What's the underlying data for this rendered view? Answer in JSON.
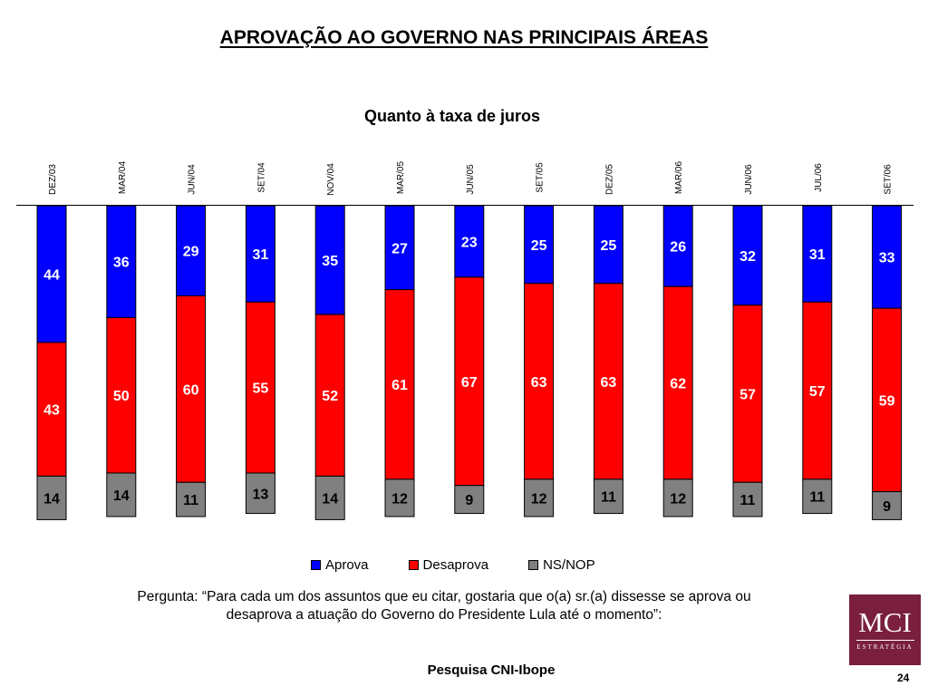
{
  "page": {
    "title": "APROVAÇÃO AO GOVERNO NAS PRINCIPAIS ÁREAS",
    "question": "Pergunta: “Para cada um dos assuntos que eu citar, gostaria que o(a) sr.(a) dissesse se aprova ou desaprova a atuação do Governo do Presidente Lula até o momento”:",
    "source": "Pesquisa CNI-Ibope",
    "page_number": "24"
  },
  "logo": {
    "main": "MCI",
    "sub": "ESTRATÉGIA"
  },
  "chart_data": {
    "type": "bar",
    "stacked": true,
    "title": "Quanto à taxa de juros",
    "categories": [
      "DEZ/03",
      "MAR/04",
      "JUN/04",
      "SET/04",
      "NOV/04",
      "MAR/05",
      "JUN/05",
      "SET/05",
      "DEZ/05",
      "MAR/06",
      "JUN/06",
      "JUL/06",
      "SET/06"
    ],
    "series": [
      {
        "name": "Aprova",
        "color": "#0000ff",
        "values": [
          44,
          36,
          29,
          31,
          35,
          27,
          23,
          25,
          25,
          26,
          32,
          31,
          33
        ]
      },
      {
        "name": "Desaprova",
        "color": "#ff0000",
        "values": [
          43,
          50,
          60,
          55,
          52,
          61,
          67,
          63,
          63,
          62,
          57,
          57,
          59
        ]
      },
      {
        "name": "NS/NOP",
        "color": "#808080",
        "values": [
          14,
          14,
          11,
          13,
          14,
          12,
          9,
          12,
          11,
          12,
          11,
          11,
          9
        ]
      }
    ],
    "legend_position": "bottom",
    "grid": false,
    "label_colors": {
      "Aprova": "#ffffff",
      "Desaprova": "#ffffff",
      "NS/NOP": "#000000"
    }
  }
}
